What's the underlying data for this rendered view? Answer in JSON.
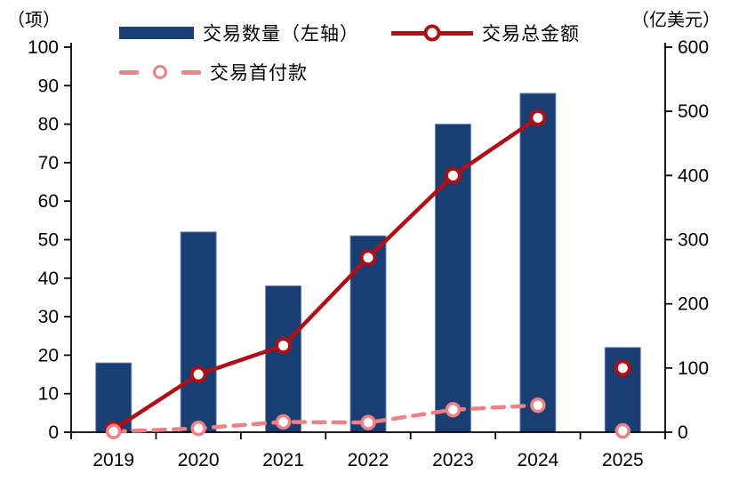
{
  "chart_data": {
    "type": "combo",
    "title": "",
    "categories": [
      "2019",
      "2020",
      "2021",
      "2022",
      "2023",
      "2024",
      "2025"
    ],
    "series": [
      {
        "name": "交易数量（左轴）",
        "type": "bar",
        "axis": "left",
        "color": "#1a3d72",
        "values": [
          18,
          52,
          38,
          51,
          80,
          88,
          22
        ]
      },
      {
        "name": "交易总金额",
        "type": "line",
        "axis": "right",
        "color": "#b00f15",
        "line_style": "solid",
        "marker": "open-circle",
        "values": [
          4,
          90,
          135,
          272,
          400,
          490,
          100
        ],
        "line_ends_at_index": 5,
        "note": "2025 point is isolated (no connecting segment)"
      },
      {
        "name": "交易首付款",
        "type": "line",
        "axis": "right",
        "color": "#ef8186",
        "line_style": "dashed",
        "marker": "open-circle",
        "values": [
          1,
          6,
          16,
          15,
          35,
          42,
          2
        ],
        "line_ends_at_index": 5,
        "note": "2025 point is isolated (no connecting segment)"
      }
    ],
    "left_axis": {
      "unit": "（项）",
      "min": 0,
      "max": 100,
      "ticks": [
        0,
        10,
        20,
        30,
        40,
        50,
        60,
        70,
        80,
        90,
        100
      ]
    },
    "right_axis": {
      "unit": "（亿美元）",
      "min": 0,
      "max": 600,
      "ticks": [
        0,
        100,
        200,
        300,
        400,
        500,
        600
      ]
    },
    "grid": false,
    "legend_position": "top"
  },
  "legend": {
    "items": [
      {
        "label": "交易数量（左轴）",
        "swatch": "bar"
      },
      {
        "label": "交易总金额",
        "swatch": "line-solid"
      },
      {
        "label": "交易首付款",
        "swatch": "line-dashed"
      }
    ]
  },
  "colors": {
    "bar": "#1a3d72",
    "bar_edge": "#6c87b8",
    "line_total": "#b00f15",
    "line_downpayment": "#ef8186",
    "axis": "#000000",
    "background": "#ffffff"
  }
}
